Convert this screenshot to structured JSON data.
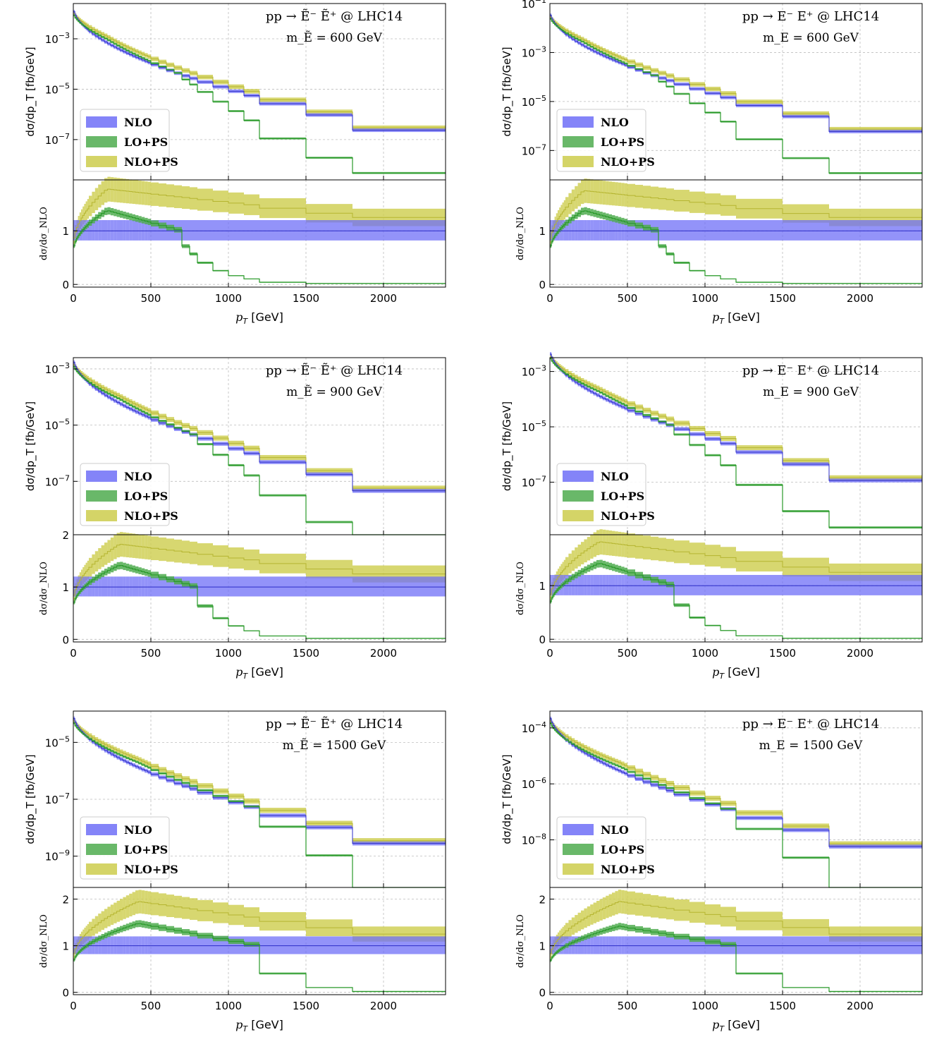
{
  "colors": {
    "nlo": "#6f6ff7",
    "lops": "#4fac4f",
    "nlops": "#cdcd4c",
    "nlo_line": "#2c2cc8",
    "lops_line": "#2a9a2a",
    "nlops_line": "#b5b530",
    "grid": "#bdbdbd"
  },
  "common": {
    "xlabel": "p_T [GeV]",
    "ylabel_top": "dσ/dp_T [fb/GeV]",
    "ylabel_bottom": "dσ/dσ_NLO",
    "legend": [
      "NLO",
      "LO+PS",
      "NLO+PS"
    ],
    "x_ticks": [
      "0",
      "500",
      "1000",
      "1500",
      "2000"
    ],
    "x_edges": [
      0,
      10,
      20,
      30,
      40,
      50,
      60,
      70,
      80,
      90,
      100,
      120,
      140,
      160,
      180,
      200,
      220,
      240,
      260,
      280,
      300,
      320,
      340,
      360,
      380,
      400,
      420,
      440,
      460,
      480,
      500,
      550,
      600,
      650,
      700,
      750,
      800,
      900,
      1000,
      1100,
      1200,
      1500,
      1800,
      2400
    ],
    "xlim": [
      0,
      2400
    ]
  },
  "chart_data": [
    {
      "id": "p1",
      "type": "step",
      "title": "pp → Ẽ⁻ Ẽ⁺ @ LHC14",
      "subtitle": "m_Ẽ = 600 GeV",
      "process": "scalar",
      "mass_label": "600 GeV",
      "log_ylim": [
        -8.6,
        -1.6
      ],
      "y_ticks": [
        {
          "e": -3,
          "label": "10^-3"
        },
        {
          "e": -5,
          "label": "10^-5"
        },
        {
          "e": -7,
          "label": "10^-7"
        }
      ],
      "nlo_log_start": -1.75,
      "nlo_log_end": -7.0,
      "nlops_ratio_peak": 1.78,
      "lops_ratio_peak": 1.38,
      "peak_x": 220,
      "lo_cut_x": 700,
      "ratio_ylim": [
        -0.05,
        1.95
      ],
      "ratio_ticks": [
        "0",
        "1"
      ]
    },
    {
      "id": "p2",
      "type": "step",
      "title": "pp → E⁻ E⁺ @ LHC14",
      "subtitle": "m_E = 600 GeV",
      "process": "fermion",
      "mass_label": "600 GeV",
      "log_ylim": [
        -8.2,
        -1.0
      ],
      "y_ticks": [
        {
          "e": -1,
          "label": "10^-1"
        },
        {
          "e": -3,
          "label": "10^-3"
        },
        {
          "e": -5,
          "label": "10^-5"
        },
        {
          "e": -7,
          "label": "10^-7"
        }
      ],
      "nlo_log_start": -1.3,
      "nlo_log_end": -6.6,
      "nlops_ratio_peak": 1.75,
      "lops_ratio_peak": 1.38,
      "peak_x": 220,
      "lo_cut_x": 700,
      "ratio_ylim": [
        -0.05,
        1.95
      ],
      "ratio_ticks": [
        "0",
        "1"
      ]
    },
    {
      "id": "p3",
      "type": "step",
      "title": "pp → Ẽ⁻ Ẽ⁺ @ LHC14",
      "subtitle": "m_Ẽ = 900 GeV",
      "process": "scalar",
      "mass_label": "900 GeV",
      "log_ylim": [
        -8.9,
        -2.6
      ],
      "y_ticks": [
        {
          "e": -3,
          "label": "10^-3"
        },
        {
          "e": -5,
          "label": "10^-5"
        },
        {
          "e": -7,
          "label": "10^-7"
        }
      ],
      "nlo_log_start": -2.6,
      "nlo_log_end": -7.7,
      "nlops_ratio_peak": 1.82,
      "lops_ratio_peak": 1.42,
      "peak_x": 300,
      "lo_cut_x": 800,
      "ratio_ylim": [
        -0.05,
        2.0
      ],
      "ratio_ticks": [
        "0",
        "1",
        "2"
      ]
    },
    {
      "id": "p4",
      "type": "step",
      "title": "pp → E⁻ E⁺ @ LHC14",
      "subtitle": "m_E = 900 GeV",
      "process": "fermion",
      "mass_label": "900 GeV",
      "log_ylim": [
        -8.9,
        -2.5
      ],
      "y_ticks": [
        {
          "e": -3,
          "label": "10^-3"
        },
        {
          "e": -5,
          "label": "10^-5"
        },
        {
          "e": -7,
          "label": "10^-7"
        }
      ],
      "nlo_log_start": -2.2,
      "nlo_log_end": -7.3,
      "nlops_ratio_peak": 1.82,
      "lops_ratio_peak": 1.42,
      "peak_x": 320,
      "lo_cut_x": 800,
      "ratio_ylim": [
        -0.05,
        1.95
      ],
      "ratio_ticks": [
        "0",
        "1"
      ]
    },
    {
      "id": "p5",
      "type": "step",
      "title": "pp → Ẽ⁻ Ẽ⁺ @ LHC14",
      "subtitle": "m_Ẽ = 1500 GeV",
      "process": "scalar",
      "mass_label": "1500 GeV",
      "log_ylim": [
        -10.1,
        -3.9
      ],
      "y_ticks": [
        {
          "e": -5,
          "label": "10^-5"
        },
        {
          "e": -7,
          "label": "10^-7"
        },
        {
          "e": -9,
          "label": "10^-9"
        }
      ],
      "nlo_log_start": -4.0,
      "nlo_log_end": -8.9,
      "nlops_ratio_peak": 1.95,
      "lops_ratio_peak": 1.48,
      "peak_x": 420,
      "lo_cut_x": 1200,
      "ratio_ylim": [
        -0.05,
        2.25
      ],
      "ratio_ticks": [
        "0",
        "1",
        "2"
      ]
    },
    {
      "id": "p6",
      "type": "step",
      "title": "pp → E⁻ E⁺ @ LHC14",
      "subtitle": "m_E = 1500 GeV",
      "process": "fermion",
      "mass_label": "1500 GeV",
      "log_ylim": [
        -9.7,
        -3.4
      ],
      "y_ticks": [
        {
          "e": -4,
          "label": "10^-4"
        },
        {
          "e": -6,
          "label": "10^-6"
        },
        {
          "e": -8,
          "label": "10^-8"
        }
      ],
      "nlo_log_start": -3.5,
      "nlo_log_end": -8.6,
      "nlops_ratio_peak": 1.95,
      "lops_ratio_peak": 1.42,
      "peak_x": 450,
      "lo_cut_x": 1200,
      "ratio_ylim": [
        -0.05,
        2.25
      ],
      "ratio_ticks": [
        "0",
        "1",
        "2"
      ]
    }
  ]
}
